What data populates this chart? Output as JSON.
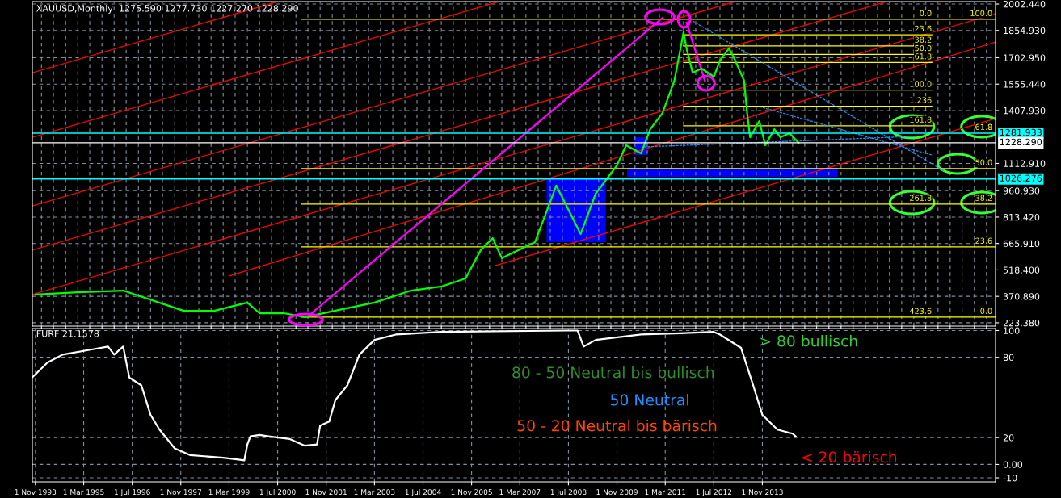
{
  "chart_data": [
    {
      "type": "line",
      "title": "XAUUSD,Monthly  1275.590 1277.730 1227.270 1228.290",
      "xlim": [
        "1993-10",
        "2020-04"
      ],
      "ylim": [
        205,
        2016
      ],
      "yticks": [
        {
          "value": 223.38,
          "label": "223.380"
        },
        {
          "value": 370.89,
          "label": "370.890"
        },
        {
          "value": 518.4,
          "label": "518.400"
        },
        {
          "value": 665.91,
          "label": "665.910"
        },
        {
          "value": 813.42,
          "label": "813.420"
        },
        {
          "value": 960.93,
          "label": "960.930"
        },
        {
          "value": 1112.91,
          "label": "1112.910"
        },
        {
          "value": 1407.93,
          "label": "1407.930"
        },
        {
          "value": 1555.44,
          "label": "1555.440"
        },
        {
          "value": 1702.95,
          "label": "1702.950"
        },
        {
          "value": 1854.93,
          "label": "1854.930"
        },
        {
          "value": 2002.44,
          "label": "2002.440"
        }
      ],
      "tick_labels": "y",
      "grid": true,
      "series": [
        {
          "color": "#ff0000",
          "x": [
            "1993-10",
            "2020-04"
          ],
          "values": [
            381,
            1948
          ]
        },
        {
          "color": "#ff0000",
          "x": [
            "1993-10",
            "2017-04"
          ],
          "values": [
            629,
            2016
          ]
        },
        {
          "color": "#ff0000",
          "x": [
            "1993-10",
            "2013-02"
          ],
          "values": [
            876,
            2016
          ]
        },
        {
          "color": "#ff0000",
          "x": [
            "1993-10",
            "2006-08"
          ],
          "values": [
            1259,
            2016
          ]
        },
        {
          "color": "#ff0000",
          "x": [
            "1993-10",
            "2000-07"
          ],
          "values": [
            1619,
            2016
          ]
        },
        {
          "color": "#ff0000",
          "x": [
            "2006-07",
            "2020-04"
          ],
          "values": [
            543,
            1363
          ]
        },
        {
          "color": "#ff0000",
          "x": [
            "1999-03",
            "2020-04"
          ],
          "values": [
            485,
            1790
          ]
        },
        {
          "color": "#ffff00",
          "x": [
            "2001-03",
            "2020-04"
          ],
          "values": [
            1917,
            1917
          ]
        },
        {
          "color": "#ffff00",
          "x": [
            "2001-03",
            "2020-04"
          ],
          "values": [
            1084,
            1084
          ]
        },
        {
          "color": "#ffff00",
          "x": [
            "2001-03",
            "2020-04"
          ],
          "values": [
            886,
            886
          ]
        },
        {
          "color": "#ffff00",
          "x": [
            "2001-03",
            "2020-04"
          ],
          "values": [
            647,
            647
          ]
        },
        {
          "color": "#ffff00",
          "x": [
            "2001-03",
            "2020-04"
          ],
          "values": [
            255,
            255
          ]
        },
        {
          "color": "#ffff00",
          "x": [
            "2011-09",
            "2018-07"
          ],
          "values": [
            1831,
            1831
          ]
        },
        {
          "color": "#ffff00",
          "x": [
            "2011-09",
            "2018-07"
          ],
          "values": [
            1769,
            1769
          ]
        },
        {
          "color": "#ffff00",
          "x": [
            "2011-09",
            "2018-07"
          ],
          "values": [
            1722,
            1722
          ]
        },
        {
          "color": "#ffff00",
          "x": [
            "2011-09",
            "2018-07"
          ],
          "values": [
            1676,
            1676
          ]
        },
        {
          "color": "#ffff00",
          "x": [
            "2011-09",
            "2018-07"
          ],
          "values": [
            1522,
            1522
          ]
        },
        {
          "color": "#ffff00",
          "x": [
            "2011-09",
            "2018-07"
          ],
          "values": [
            1432,
            1432
          ]
        },
        {
          "color": "#ffff00",
          "x": [
            "2011-09",
            "2018-07"
          ],
          "values": [
            1323,
            1323
          ]
        },
        {
          "color": "#1e90ff",
          "line_style": "dashed",
          "x": [
            "2010-08",
            "2018-01"
          ],
          "values": [
            1205,
            1264
          ]
        },
        {
          "color": "#1e90ff",
          "line_style": "dashed",
          "x": [
            "2013-10",
            "2018-07"
          ],
          "values": [
            1430,
            1160
          ]
        },
        {
          "color": "#1e90ff",
          "line_style": "dashed",
          "x": [
            "2011-12",
            "2018-11"
          ],
          "values": [
            1908,
            1070
          ]
        },
        {
          "color": "#ff00ff",
          "x": [
            "2001-05",
            "2011-02"
          ],
          "values": [
            259,
            1925
          ]
        },
        {
          "color": "#ff00ff",
          "x": [
            "2011-10",
            "2012-04"
          ],
          "values": [
            1899,
            1575
          ]
        },
        {
          "color": "#00ff00",
          "x": [
            "1993-11",
            "1995-01",
            "1996-04",
            "1997-12",
            "1998-10",
            "1999-09",
            "2000-01",
            "2000-09",
            "2001-04",
            "2002-02",
            "2003-03",
            "2004-03",
            "2005-01",
            "2005-09",
            "2006-02",
            "2006-06",
            "2006-09",
            "2007-08",
            "2007-12",
            "2008-03",
            "2008-11",
            "2009-04",
            "2009-11",
            "2010-02",
            "2010-07",
            "2010-10",
            "2011-02",
            "2011-06",
            "2011-09",
            "2011-10",
            "2011-12",
            "2012-03",
            "2012-07",
            "2012-09",
            "2012-12",
            "2013-02",
            "2013-05",
            "2013-06",
            "2013-07",
            "2013-10",
            "2013-12",
            "2014-03",
            "2014-05",
            "2014-08",
            "2014-11"
          ],
          "values": [
            381,
            394,
            403,
            290,
            290,
            336,
            277,
            277,
            255,
            291,
            336,
            403,
            426,
            471,
            629,
            696,
            584,
            674,
            854,
            989,
            719,
            944,
            1102,
            1214,
            1169,
            1304,
            1394,
            1575,
            1845,
            1755,
            1620,
            1642,
            1597,
            1687,
            1755,
            1687,
            1575,
            1394,
            1259,
            1349,
            1214,
            1304,
            1259,
            1282,
            1228
          ]
        }
      ],
      "ref_lines": [
        {
          "axis": "y",
          "value": 1281.933,
          "label": "1281.933",
          "color": "#00ffff"
        },
        {
          "axis": "y",
          "value": 1228.29,
          "label": "1228.290",
          "color": "#ffffff"
        },
        {
          "axis": "y",
          "value": 1026.276,
          "label": "1026.276",
          "color": "#00ffff"
        }
      ],
      "annotations": [
        {
          "text": "0.0",
          "x": "2018-07",
          "y": 1917
        },
        {
          "text": "23.6",
          "x": "2018-07",
          "y": 1831
        },
        {
          "text": "38.2",
          "x": "2018-07",
          "y": 1769
        },
        {
          "text": "50.0",
          "x": "2018-07",
          "y": 1722
        },
        {
          "text": "61.8",
          "x": "2018-07",
          "y": 1676
        },
        {
          "text": "100.0",
          "x": "2018-07",
          "y": 1522
        },
        {
          "text": "1.236",
          "x": "2018-07",
          "y": 1432
        },
        {
          "text": "161.8",
          "x": "2018-07",
          "y": 1323
        },
        {
          "text": "261.8",
          "x": "2018-07",
          "y": 886
        },
        {
          "text": "423.6",
          "x": "2018-07",
          "y": 255
        },
        {
          "text": "100.0",
          "x": "2020-03",
          "y": 1917
        },
        {
          "text": "61.8",
          "x": "2020-03",
          "y": 1281.933
        },
        {
          "text": "50.0",
          "x": "2020-03",
          "y": 1084
        },
        {
          "text": "38.2",
          "x": "2020-03",
          "y": 886
        },
        {
          "text": "23.6",
          "x": "2020-03",
          "y": 647
        },
        {
          "text": "0.0",
          "x": "2020-03",
          "y": 255
        }
      ]
    },
    {
      "type": "line",
      "title": "FURF 21.1578",
      "xlim": [
        "1993-10",
        "2020-04"
      ],
      "ylim": [
        -13,
        101.5
      ],
      "yticks": [
        100,
        80,
        20,
        {
          "value": 0,
          "label": "0.00"
        },
        -10
      ],
      "xticks": [
        {
          "value": "1993-11-01",
          "label": "1 Nov 1993"
        },
        {
          "value": "1995-03-01",
          "label": "1 Mar 1995"
        },
        {
          "value": "1996-07-01",
          "label": "1 Jul 1996"
        },
        {
          "value": "1997-11-01",
          "label": "1 Nov 1997"
        },
        {
          "value": "1999-03-01",
          "label": "1 Mar 1999"
        },
        {
          "value": "2000-07-01",
          "label": "1 Jul 2000"
        },
        {
          "value": "2001-11-01",
          "label": "1 Nov 2001"
        },
        {
          "value": "2003-03-01",
          "label": "1 Mar 2003"
        },
        {
          "value": "2004-07-01",
          "label": "1 Jul 2004"
        },
        {
          "value": "2005-11-01",
          "label": "1 Nov 2005"
        },
        {
          "value": "2007-03-01",
          "label": "1 Mar 2007"
        },
        {
          "value": "2008-07-01",
          "label": "1 Jul 2008"
        },
        {
          "value": "2009-11-01",
          "label": "1 Nov 2009"
        },
        {
          "value": "2011-03-01",
          "label": "1 Mar 2011"
        },
        {
          "value": "2012-07-01",
          "label": "1 Jul 2012"
        },
        {
          "value": "2013-11-01",
          "label": "1 Nov 2013"
        }
      ],
      "grid": true,
      "series": [
        {
          "color": "#ffffff",
          "x": [
            "1993-10",
            "1994-03",
            "1994-08",
            "1995-06",
            "1995-11",
            "1996-01",
            "1996-04",
            "1996-06",
            "1996-10",
            "1997-01",
            "1997-04",
            "1997-09",
            "1998-02",
            "1999-01",
            "1999-05",
            "1999-08",
            "1999-09",
            "1999-10",
            "2000-01",
            "2000-04",
            "2000-11",
            "2001-04",
            "2001-08",
            "2001-09",
            "2001-12",
            "2002-02",
            "2002-06",
            "2002-10",
            "2003-03",
            "2003-10",
            "2005-01",
            "2008-06",
            "2008-10",
            "2008-12",
            "2009-04",
            "2010-07",
            "2011-08",
            "2012-07",
            "2012-09",
            "2013-04",
            "2013-08",
            "2013-11",
            "2014-04",
            "2014-09",
            "2014-10"
          ],
          "values": [
            65,
            76,
            82,
            86,
            88,
            82,
            88,
            65,
            59,
            37,
            26,
            12,
            7,
            5,
            4,
            3,
            15,
            21,
            22,
            21,
            19,
            14,
            15,
            29,
            32,
            48,
            59,
            82,
            93,
            97,
            99,
            100,
            100,
            88,
            93,
            97,
            98,
            99,
            97,
            87,
            59,
            37,
            26,
            23,
            21
          ]
        }
      ],
      "annotations": [
        "> 80 bullisch",
        "80 - 50 Neutral bis bullisch",
        "50 Neutral",
        "50 - 20 Neutral bis bärisch",
        "< 20 bärisch"
      ]
    }
  ]
}
